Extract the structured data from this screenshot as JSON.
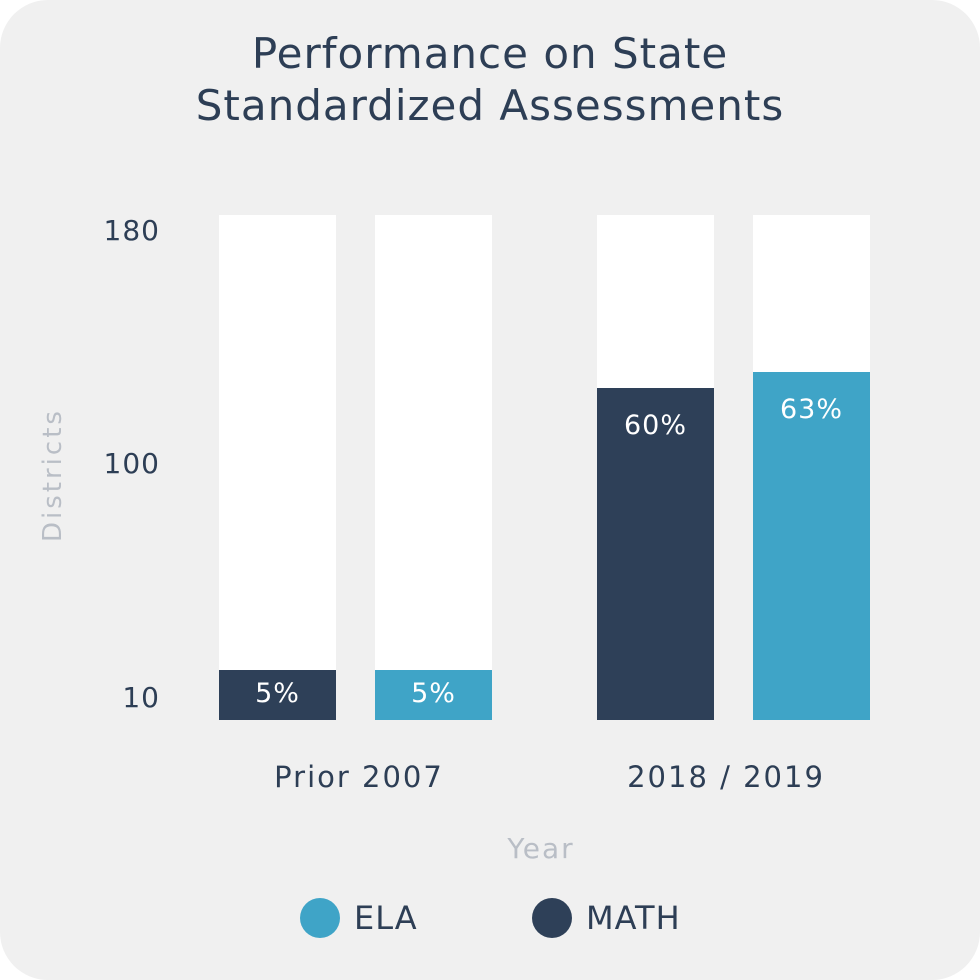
{
  "colors": {
    "math": "#2e4058",
    "ela": "#3fa4c7",
    "track": "#ffffff",
    "background": "#f0f0f0"
  },
  "chart_data": {
    "type": "bar",
    "title": "Performance on State Standardized Assessments",
    "title_lines": [
      "Performance on State",
      "Standardized Assessments"
    ],
    "xlabel": "Year",
    "ylabel": "Districts",
    "y_ticks": [
      "180",
      "100",
      "10"
    ],
    "categories": [
      "Prior 2007",
      "2018 / 2019"
    ],
    "series": [
      {
        "name": "MATH",
        "values": [
          5,
          60
        ],
        "labels": [
          "5%",
          "60%"
        ]
      },
      {
        "name": "ELA",
        "values": [
          5,
          63
        ],
        "labels": [
          "5%",
          "63%"
        ]
      }
    ],
    "legend": [
      "ELA",
      "MATH"
    ],
    "legend_placement": "bottom",
    "grid": false
  }
}
